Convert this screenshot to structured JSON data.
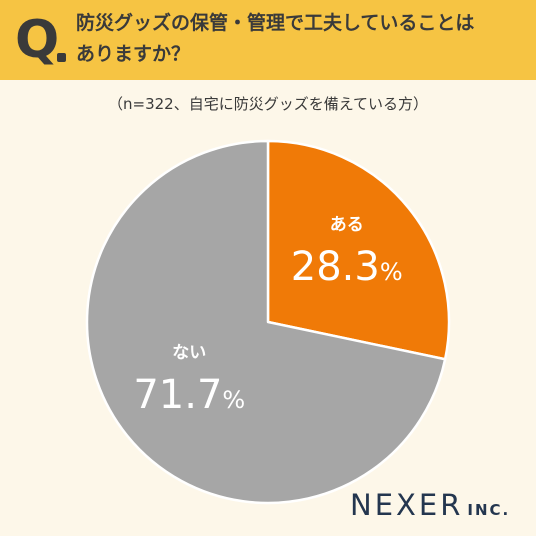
{
  "question": {
    "mark": "Q",
    "text_line1": "防災グッズの保管・管理で工夫していることは",
    "text_line2": "ありますか？"
  },
  "subtitle": "（n=322、自宅に防災グッズを備えている方）",
  "chart_data": {
    "type": "pie",
    "slices": [
      {
        "label": "ある",
        "value": 28.3,
        "display": "28.3",
        "color": "#f07a07",
        "text_color": "#ffffff"
      },
      {
        "label": "ない",
        "value": 71.7,
        "display": "71.7",
        "color": "#a6a6a6",
        "text_color": "#ffffff"
      }
    ],
    "unit": "%"
  },
  "brand": {
    "name": "NEXER",
    "suffix": "INC."
  }
}
